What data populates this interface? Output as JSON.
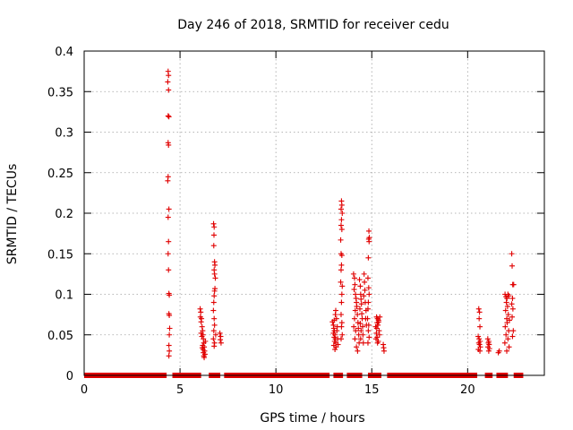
{
  "chart_data": {
    "type": "scatter",
    "title": "Day 246 of 2018, SRMTID for receiver cedu",
    "xlabel": "GPS time / hours",
    "ylabel": "SRMTID / TECUs",
    "xlim": [
      0,
      24
    ],
    "ylim": [
      0,
      0.4
    ],
    "xticks": [
      0,
      5,
      10,
      15,
      20
    ],
    "yticks": [
      0,
      0.05,
      0.1,
      0.15,
      0.2,
      0.25,
      0.3,
      0.35,
      0.4
    ],
    "xtick_labels": [
      "0",
      "5",
      "10",
      "15",
      "20"
    ],
    "ytick_labels": [
      "0",
      "0.05",
      "0.1",
      "0.15",
      "0.2",
      "0.25",
      "0.3",
      "0.35",
      "0.4"
    ],
    "grid": true,
    "marker": "+",
    "color": "#e00000",
    "zero_segments": [
      [
        0.0,
        4.3
      ],
      [
        4.6,
        6.1
      ],
      [
        6.5,
        7.1
      ],
      [
        7.3,
        12.8
      ],
      [
        13.0,
        13.5
      ],
      [
        13.7,
        14.5
      ],
      [
        14.8,
        15.5
      ],
      [
        15.8,
        20.5
      ],
      [
        20.9,
        21.3
      ],
      [
        21.5,
        22.1
      ],
      [
        22.4,
        22.9
      ]
    ],
    "series": [
      {
        "name": "SRMTID",
        "points": [
          {
            "x": 4.38,
            "y": 0.375
          },
          {
            "x": 4.4,
            "y": 0.37
          },
          {
            "x": 4.36,
            "y": 0.362
          },
          {
            "x": 4.4,
            "y": 0.352
          },
          {
            "x": 4.38,
            "y": 0.32
          },
          {
            "x": 4.42,
            "y": 0.319
          },
          {
            "x": 4.38,
            "y": 0.287
          },
          {
            "x": 4.4,
            "y": 0.284
          },
          {
            "x": 4.38,
            "y": 0.245
          },
          {
            "x": 4.36,
            "y": 0.24
          },
          {
            "x": 4.42,
            "y": 0.205
          },
          {
            "x": 4.38,
            "y": 0.195
          },
          {
            "x": 4.4,
            "y": 0.165
          },
          {
            "x": 4.38,
            "y": 0.15
          },
          {
            "x": 4.4,
            "y": 0.13
          },
          {
            "x": 4.42,
            "y": 0.101
          },
          {
            "x": 4.44,
            "y": 0.099
          },
          {
            "x": 4.42,
            "y": 0.076
          },
          {
            "x": 4.44,
            "y": 0.074
          },
          {
            "x": 4.46,
            "y": 0.058
          },
          {
            "x": 4.44,
            "y": 0.05
          },
          {
            "x": 4.42,
            "y": 0.037
          },
          {
            "x": 4.44,
            "y": 0.03
          },
          {
            "x": 4.42,
            "y": 0.024
          },
          {
            "x": 6.05,
            "y": 0.082
          },
          {
            "x": 6.08,
            "y": 0.078
          },
          {
            "x": 6.06,
            "y": 0.072
          },
          {
            "x": 6.12,
            "y": 0.07
          },
          {
            "x": 6.1,
            "y": 0.066
          },
          {
            "x": 6.15,
            "y": 0.06
          },
          {
            "x": 6.18,
            "y": 0.055
          },
          {
            "x": 6.2,
            "y": 0.05
          },
          {
            "x": 6.14,
            "y": 0.048
          },
          {
            "x": 6.22,
            "y": 0.045
          },
          {
            "x": 6.24,
            "y": 0.04
          },
          {
            "x": 6.18,
            "y": 0.037
          },
          {
            "x": 6.26,
            "y": 0.035
          },
          {
            "x": 6.2,
            "y": 0.032
          },
          {
            "x": 6.28,
            "y": 0.03
          },
          {
            "x": 6.22,
            "y": 0.028
          },
          {
            "x": 6.3,
            "y": 0.026
          },
          {
            "x": 6.24,
            "y": 0.024
          },
          {
            "x": 6.16,
            "y": 0.034
          },
          {
            "x": 6.32,
            "y": 0.042
          },
          {
            "x": 6.1,
            "y": 0.052
          },
          {
            "x": 6.26,
            "y": 0.022
          },
          {
            "x": 6.75,
            "y": 0.187
          },
          {
            "x": 6.78,
            "y": 0.183
          },
          {
            "x": 6.77,
            "y": 0.173
          },
          {
            "x": 6.76,
            "y": 0.16
          },
          {
            "x": 6.8,
            "y": 0.14
          },
          {
            "x": 6.82,
            "y": 0.136
          },
          {
            "x": 6.78,
            "y": 0.13
          },
          {
            "x": 6.8,
            "y": 0.125
          },
          {
            "x": 6.84,
            "y": 0.12
          },
          {
            "x": 6.82,
            "y": 0.107
          },
          {
            "x": 6.8,
            "y": 0.104
          },
          {
            "x": 6.78,
            "y": 0.098
          },
          {
            "x": 6.76,
            "y": 0.09
          },
          {
            "x": 6.74,
            "y": 0.08
          },
          {
            "x": 6.78,
            "y": 0.07
          },
          {
            "x": 6.8,
            "y": 0.062
          },
          {
            "x": 6.76,
            "y": 0.055
          },
          {
            "x": 6.86,
            "y": 0.05
          },
          {
            "x": 6.74,
            "y": 0.045
          },
          {
            "x": 6.8,
            "y": 0.04
          },
          {
            "x": 6.78,
            "y": 0.036
          },
          {
            "x": 7.08,
            "y": 0.052
          },
          {
            "x": 7.12,
            "y": 0.048
          },
          {
            "x": 7.1,
            "y": 0.044
          },
          {
            "x": 7.14,
            "y": 0.04
          },
          {
            "x": 12.95,
            "y": 0.066
          },
          {
            "x": 13.0,
            "y": 0.062
          },
          {
            "x": 13.02,
            "y": 0.058
          },
          {
            "x": 13.05,
            "y": 0.055
          },
          {
            "x": 13.0,
            "y": 0.052
          },
          {
            "x": 13.08,
            "y": 0.05
          },
          {
            "x": 13.04,
            "y": 0.047
          },
          {
            "x": 13.1,
            "y": 0.045
          },
          {
            "x": 13.06,
            "y": 0.042
          },
          {
            "x": 13.12,
            "y": 0.04
          },
          {
            "x": 13.02,
            "y": 0.037
          },
          {
            "x": 13.14,
            "y": 0.035
          },
          {
            "x": 13.08,
            "y": 0.032
          },
          {
            "x": 13.1,
            "y": 0.075
          },
          {
            "x": 13.12,
            "y": 0.08
          },
          {
            "x": 13.16,
            "y": 0.07
          },
          {
            "x": 13.2,
            "y": 0.06
          },
          {
            "x": 13.18,
            "y": 0.055
          },
          {
            "x": 13.04,
            "y": 0.068
          },
          {
            "x": 13.22,
            "y": 0.045
          },
          {
            "x": 13.24,
            "y": 0.038
          },
          {
            "x": 13.42,
            "y": 0.215
          },
          {
            "x": 13.44,
            "y": 0.21
          },
          {
            "x": 13.4,
            "y": 0.205
          },
          {
            "x": 13.46,
            "y": 0.2
          },
          {
            "x": 13.42,
            "y": 0.192
          },
          {
            "x": 13.4,
            "y": 0.185
          },
          {
            "x": 13.44,
            "y": 0.18
          },
          {
            "x": 13.38,
            "y": 0.167
          },
          {
            "x": 13.4,
            "y": 0.15
          },
          {
            "x": 13.44,
            "y": 0.148
          },
          {
            "x": 13.42,
            "y": 0.136
          },
          {
            "x": 13.4,
            "y": 0.13
          },
          {
            "x": 13.38,
            "y": 0.115
          },
          {
            "x": 13.46,
            "y": 0.11
          },
          {
            "x": 13.44,
            "y": 0.1
          },
          {
            "x": 13.42,
            "y": 0.09
          },
          {
            "x": 13.4,
            "y": 0.075
          },
          {
            "x": 13.44,
            "y": 0.065
          },
          {
            "x": 13.42,
            "y": 0.06
          },
          {
            "x": 13.46,
            "y": 0.05
          },
          {
            "x": 13.4,
            "y": 0.045
          },
          {
            "x": 14.05,
            "y": 0.125
          },
          {
            "x": 14.1,
            "y": 0.12
          },
          {
            "x": 14.12,
            "y": 0.112
          },
          {
            "x": 14.08,
            "y": 0.106
          },
          {
            "x": 14.15,
            "y": 0.1
          },
          {
            "x": 14.18,
            "y": 0.095
          },
          {
            "x": 14.2,
            "y": 0.09
          },
          {
            "x": 14.22,
            "y": 0.085
          },
          {
            "x": 14.14,
            "y": 0.08
          },
          {
            "x": 14.25,
            "y": 0.075
          },
          {
            "x": 14.1,
            "y": 0.07
          },
          {
            "x": 14.28,
            "y": 0.065
          },
          {
            "x": 14.06,
            "y": 0.06
          },
          {
            "x": 14.3,
            "y": 0.058
          },
          {
            "x": 14.16,
            "y": 0.055
          },
          {
            "x": 14.32,
            "y": 0.05
          },
          {
            "x": 14.12,
            "y": 0.045
          },
          {
            "x": 14.34,
            "y": 0.04
          },
          {
            "x": 14.2,
            "y": 0.035
          },
          {
            "x": 14.26,
            "y": 0.03
          },
          {
            "x": 14.36,
            "y": 0.118
          },
          {
            "x": 14.4,
            "y": 0.11
          },
          {
            "x": 14.42,
            "y": 0.1
          },
          {
            "x": 14.44,
            "y": 0.094
          },
          {
            "x": 14.46,
            "y": 0.088
          },
          {
            "x": 14.38,
            "y": 0.082
          },
          {
            "x": 14.48,
            "y": 0.076
          },
          {
            "x": 14.5,
            "y": 0.07
          },
          {
            "x": 14.4,
            "y": 0.064
          },
          {
            "x": 14.52,
            "y": 0.06
          },
          {
            "x": 14.44,
            "y": 0.055
          },
          {
            "x": 14.54,
            "y": 0.05
          },
          {
            "x": 14.42,
            "y": 0.045
          },
          {
            "x": 14.56,
            "y": 0.04
          },
          {
            "x": 14.6,
            "y": 0.125
          },
          {
            "x": 14.62,
            "y": 0.115
          },
          {
            "x": 14.64,
            "y": 0.105
          },
          {
            "x": 14.58,
            "y": 0.098
          },
          {
            "x": 14.66,
            "y": 0.09
          },
          {
            "x": 14.7,
            "y": 0.08
          },
          {
            "x": 14.68,
            "y": 0.07
          },
          {
            "x": 14.72,
            "y": 0.062
          },
          {
            "x": 14.85,
            "y": 0.178
          },
          {
            "x": 14.87,
            "y": 0.17
          },
          {
            "x": 14.84,
            "y": 0.168
          },
          {
            "x": 14.86,
            "y": 0.165
          },
          {
            "x": 14.82,
            "y": 0.145
          },
          {
            "x": 14.8,
            "y": 0.12
          },
          {
            "x": 14.84,
            "y": 0.108
          },
          {
            "x": 14.86,
            "y": 0.1
          },
          {
            "x": 14.82,
            "y": 0.09
          },
          {
            "x": 14.8,
            "y": 0.082
          },
          {
            "x": 14.78,
            "y": 0.07
          },
          {
            "x": 14.84,
            "y": 0.062
          },
          {
            "x": 14.82,
            "y": 0.055
          },
          {
            "x": 14.86,
            "y": 0.047
          },
          {
            "x": 14.8,
            "y": 0.04
          },
          {
            "x": 15.25,
            "y": 0.072
          },
          {
            "x": 15.3,
            "y": 0.07
          },
          {
            "x": 15.35,
            "y": 0.068
          },
          {
            "x": 15.28,
            "y": 0.065
          },
          {
            "x": 15.32,
            "y": 0.062
          },
          {
            "x": 15.26,
            "y": 0.058
          },
          {
            "x": 15.38,
            "y": 0.055
          },
          {
            "x": 15.24,
            "y": 0.052
          },
          {
            "x": 15.4,
            "y": 0.05
          },
          {
            "x": 15.28,
            "y": 0.047
          },
          {
            "x": 15.22,
            "y": 0.045
          },
          {
            "x": 15.34,
            "y": 0.042
          },
          {
            "x": 15.3,
            "y": 0.04
          },
          {
            "x": 15.42,
            "y": 0.072
          },
          {
            "x": 15.2,
            "y": 0.06
          },
          {
            "x": 15.36,
            "y": 0.066
          },
          {
            "x": 15.6,
            "y": 0.038
          },
          {
            "x": 15.62,
            "y": 0.034
          },
          {
            "x": 15.64,
            "y": 0.03
          },
          {
            "x": 20.58,
            "y": 0.082
          },
          {
            "x": 20.62,
            "y": 0.078
          },
          {
            "x": 20.6,
            "y": 0.07
          },
          {
            "x": 20.64,
            "y": 0.06
          },
          {
            "x": 20.55,
            "y": 0.048
          },
          {
            "x": 20.6,
            "y": 0.045
          },
          {
            "x": 20.65,
            "y": 0.042
          },
          {
            "x": 20.58,
            "y": 0.04
          },
          {
            "x": 20.62,
            "y": 0.038
          },
          {
            "x": 20.66,
            "y": 0.035
          },
          {
            "x": 20.56,
            "y": 0.032
          },
          {
            "x": 20.64,
            "y": 0.03
          },
          {
            "x": 21.05,
            "y": 0.045
          },
          {
            "x": 21.1,
            "y": 0.042
          },
          {
            "x": 21.08,
            "y": 0.04
          },
          {
            "x": 21.12,
            "y": 0.038
          },
          {
            "x": 21.06,
            "y": 0.035
          },
          {
            "x": 21.14,
            "y": 0.033
          },
          {
            "x": 21.1,
            "y": 0.03
          },
          {
            "x": 21.6,
            "y": 0.028
          },
          {
            "x": 21.65,
            "y": 0.03
          },
          {
            "x": 21.95,
            "y": 0.1
          },
          {
            "x": 22.0,
            "y": 0.097
          },
          {
            "x": 22.05,
            "y": 0.095
          },
          {
            "x": 22.1,
            "y": 0.1
          },
          {
            "x": 22.15,
            "y": 0.098
          },
          {
            "x": 22.02,
            "y": 0.09
          },
          {
            "x": 22.08,
            "y": 0.085
          },
          {
            "x": 21.98,
            "y": 0.08
          },
          {
            "x": 22.12,
            "y": 0.075
          },
          {
            "x": 22.04,
            "y": 0.07
          },
          {
            "x": 22.18,
            "y": 0.068
          },
          {
            "x": 22.06,
            "y": 0.065
          },
          {
            "x": 21.96,
            "y": 0.06
          },
          {
            "x": 22.14,
            "y": 0.055
          },
          {
            "x": 22.0,
            "y": 0.05
          },
          {
            "x": 22.1,
            "y": 0.045
          },
          {
            "x": 21.94,
            "y": 0.04
          },
          {
            "x": 22.16,
            "y": 0.035
          },
          {
            "x": 22.04,
            "y": 0.03
          },
          {
            "x": 22.3,
            "y": 0.15
          },
          {
            "x": 22.32,
            "y": 0.135
          },
          {
            "x": 22.35,
            "y": 0.112
          },
          {
            "x": 22.4,
            "y": 0.112
          },
          {
            "x": 22.34,
            "y": 0.095
          },
          {
            "x": 22.3,
            "y": 0.088
          },
          {
            "x": 22.36,
            "y": 0.082
          },
          {
            "x": 22.32,
            "y": 0.072
          },
          {
            "x": 22.38,
            "y": 0.055
          },
          {
            "x": 22.34,
            "y": 0.048
          }
        ]
      }
    ]
  }
}
